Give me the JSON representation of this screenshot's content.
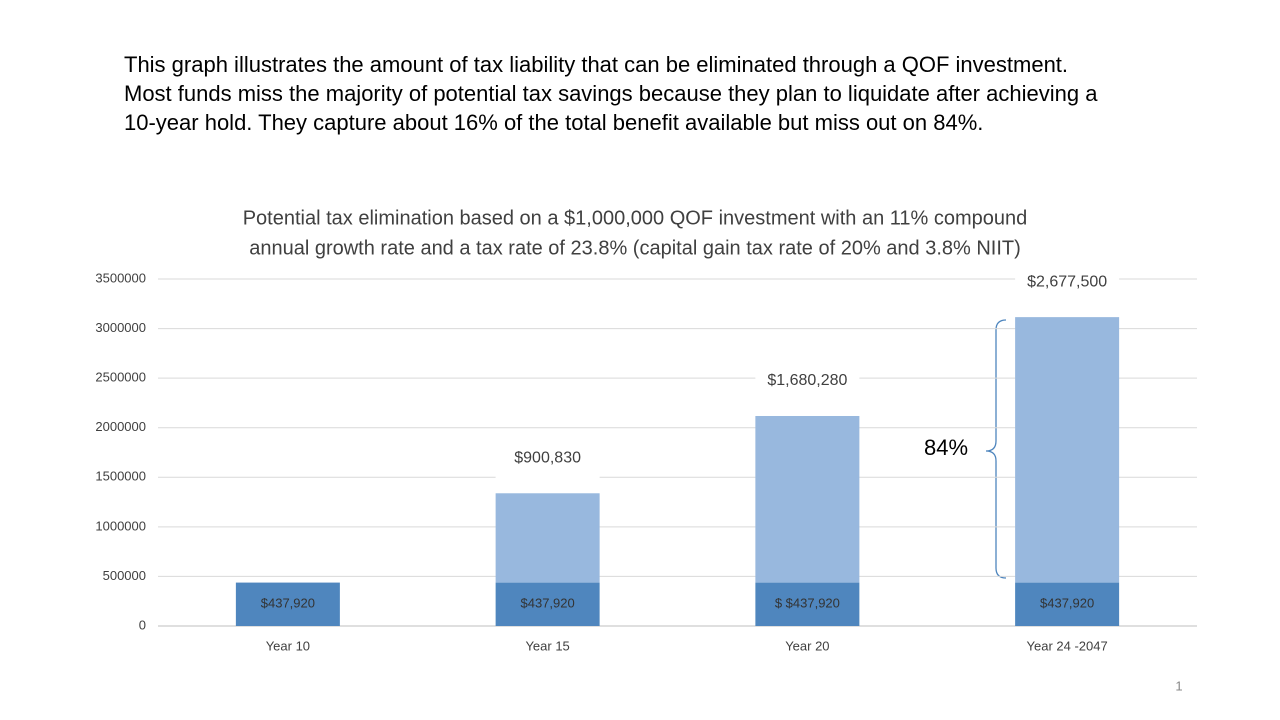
{
  "intro": [
    "This graph illustrates the amount of tax liability that can be eliminated through a QOF investment.",
    "Most funds miss the majority of potential tax savings because they plan to liquidate after achieving a",
    "10-year hold. They capture about 16% of the total benefit available but miss out on 84%."
  ],
  "page_number": "1",
  "chart_data": {
    "type": "bar",
    "stacked": true,
    "title": [
      "Potential tax elimination based on a $1,000,000 QOF investment with an 11% compound",
      "annual growth rate and a tax rate of 23.8% (capital gain tax rate of 20% and 3.8% NIIT)"
    ],
    "categories": [
      "Year 10",
      "Year 15",
      "Year 20",
      "Year 24 -2047"
    ],
    "series": [
      {
        "color": "#4f86be",
        "values": [
          437920,
          437920,
          437920,
          437920
        ],
        "value_labels": [
          "$437,920",
          "$437,920",
          "$ $437,920",
          "$437,920"
        ]
      },
      {
        "color": "#98b8de",
        "values": [
          null,
          900830,
          1680280,
          2677500
        ],
        "value_labels": [
          null,
          "$900,830",
          "$1,680,280",
          "$2,677,500"
        ]
      }
    ],
    "ylim": [
      0,
      3500000
    ],
    "yticks": [
      0,
      500000,
      1000000,
      1500000,
      2000000,
      2500000,
      3000000,
      3500000
    ],
    "grid": true,
    "annotation": "84%"
  }
}
